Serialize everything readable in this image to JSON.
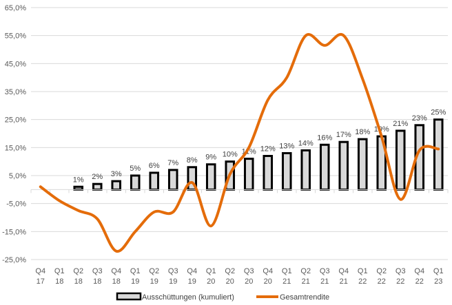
{
  "chart_data": {
    "type": "bar+line",
    "title": "",
    "xlabel": "",
    "ylabel": "",
    "ylim": [
      -25,
      65
    ],
    "y_ticks": [
      -25,
      -15,
      -5,
      5,
      15,
      25,
      35,
      45,
      55,
      65
    ],
    "y_tick_labels": [
      "-25,0%",
      "-15,0%",
      "-5,0%",
      "5,0%",
      "15,0%",
      "25,0%",
      "35,0%",
      "45,0%",
      "55,0%",
      "65,0%"
    ],
    "grid": true,
    "legend_position": "bottom",
    "categories": [
      [
        "Q4",
        "17"
      ],
      [
        "Q1",
        "18"
      ],
      [
        "Q2",
        "18"
      ],
      [
        "Q3",
        "18"
      ],
      [
        "Q4",
        "18"
      ],
      [
        "Q1",
        "19"
      ],
      [
        "Q2",
        "19"
      ],
      [
        "Q3",
        "19"
      ],
      [
        "Q4",
        "19"
      ],
      [
        "Q1",
        "20"
      ],
      [
        "Q2",
        "20"
      ],
      [
        "Q3",
        "20"
      ],
      [
        "Q4",
        "20"
      ],
      [
        "Q1",
        "21"
      ],
      [
        "Q2",
        "21"
      ],
      [
        "Q3",
        "21"
      ],
      [
        "Q4",
        "21"
      ],
      [
        "Q1",
        "22"
      ],
      [
        "Q2",
        "22"
      ],
      [
        "Q3",
        "22"
      ],
      [
        "Q4",
        "22"
      ],
      [
        "Q1",
        "23"
      ]
    ],
    "series": [
      {
        "name": "Ausschüttungen (kumuliert)",
        "type": "bar",
        "fill": "#d9d9d9",
        "stroke": "#000000",
        "values": [
          null,
          null,
          1,
          2,
          3,
          5,
          6,
          7,
          8,
          9,
          10,
          11,
          12,
          13,
          14,
          16,
          17,
          18,
          19,
          21,
          23,
          25
        ],
        "labels": [
          null,
          null,
          "1%",
          "2%",
          "3%",
          "5%",
          "6%",
          "7%",
          "8%",
          "9%",
          "10%",
          "11%",
          "12%",
          "13%",
          "14%",
          "16%",
          "17%",
          "18%",
          "19%",
          "21%",
          "23%",
          "25%"
        ]
      },
      {
        "name": "Gesamtrendite",
        "type": "line",
        "smooth": true,
        "color": "#e46c0a",
        "values": [
          1,
          -4,
          -7.5,
          -10.5,
          -22,
          -15,
          -8,
          -8,
          2.5,
          -13,
          5.5,
          15,
          32,
          40,
          55,
          51.5,
          55,
          39.5,
          19,
          -3.5,
          14,
          14.5
        ]
      }
    ]
  }
}
